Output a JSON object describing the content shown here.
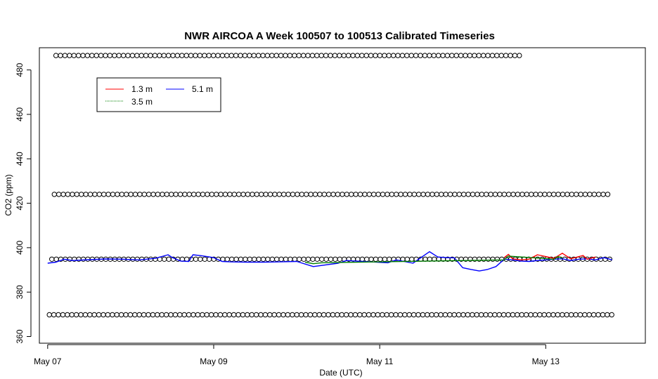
{
  "chart_data": {
    "type": "line",
    "title": "NWR AIRCOA A  Week 100507 to 100513  Calibrated Timeseries",
    "xlabel": "Date (UTC)",
    "ylabel": "CO2 (ppm)",
    "xlim": [
      -0.1,
      7.2
    ],
    "ylim": [
      357,
      490
    ],
    "x_ticks": [
      {
        "value": 0,
        "label": "May 07"
      },
      {
        "value": 2,
        "label": "May 09"
      },
      {
        "value": 4,
        "label": "May 11"
      },
      {
        "value": 6,
        "label": "May 13"
      }
    ],
    "y_ticks": [
      360,
      380,
      400,
      420,
      440,
      460,
      480
    ],
    "legend": {
      "position": "top-left",
      "entries": [
        {
          "name": "1.3 m",
          "color": "#ff0000"
        },
        {
          "name": "3.5 m",
          "color": "#008000"
        },
        {
          "name": "5.1 m",
          "color": "#0000ff"
        }
      ]
    },
    "reference_point_rows": [
      {
        "y": 486.5,
        "x_start": 0.1,
        "x_end": 5.7
      },
      {
        "y": 424.0,
        "x_start": 0.08,
        "x_end": 6.8
      },
      {
        "y": 394.8,
        "x_start": 0.05,
        "x_end": 6.8
      },
      {
        "y": 369.8,
        "x_start": 0.02,
        "x_end": 6.8
      }
    ],
    "series": [
      {
        "name": "5.1 m",
        "color": "#0000ff",
        "x": [
          0.0,
          0.1,
          0.2,
          0.3,
          0.5,
          0.7,
          0.9,
          1.1,
          1.3,
          1.45,
          1.5,
          1.6,
          1.7,
          1.75,
          1.85,
          2.0,
          2.1,
          2.2,
          2.4,
          2.6,
          2.8,
          3.0,
          3.2,
          3.5,
          3.6,
          3.7,
          3.8,
          3.9,
          4.0,
          4.1,
          4.2,
          4.4,
          4.6,
          4.7,
          4.8,
          4.9,
          5.0,
          5.1,
          5.2,
          5.3,
          5.4,
          5.5,
          5.6,
          5.7,
          5.8,
          5.9,
          6.0,
          6.1,
          6.2,
          6.3,
          6.4,
          6.5,
          6.6,
          6.7,
          6.8
        ],
        "y": [
          393.0,
          393.5,
          394.8,
          394.2,
          394.6,
          394.9,
          394.8,
          394.5,
          395.2,
          396.8,
          395.6,
          394.0,
          393.8,
          396.8,
          396.4,
          395.5,
          393.8,
          393.6,
          393.5,
          393.5,
          393.6,
          393.8,
          391.5,
          393.0,
          394.2,
          394.0,
          393.8,
          393.6,
          393.4,
          393.2,
          394.5,
          393.0,
          398.2,
          395.8,
          395.5,
          395.4,
          391.0,
          390.2,
          389.5,
          390.2,
          391.5,
          394.8,
          394.5,
          394.0,
          393.8,
          394.2,
          394.5,
          394.8,
          395.0,
          394.2,
          394.8,
          395.0,
          394.5,
          395.5,
          394.5
        ]
      },
      {
        "name": "1.3 m",
        "color": "#ff0000",
        "x": [
          5.5,
          5.55,
          5.6,
          5.7,
          5.8,
          5.9,
          6.1,
          6.2,
          6.3,
          6.45,
          6.5,
          6.6
        ],
        "y": [
          395.5,
          397.0,
          395.0,
          394.5,
          394.8,
          396.8,
          395.2,
          397.5,
          395.0,
          396.5,
          394.8,
          395.8
        ]
      },
      {
        "name": "3.5 m",
        "color": "#008000",
        "x": [
          3.1,
          3.2,
          3.3,
          5.5,
          5.55,
          6.1,
          6.15,
          6.2
        ],
        "y": [
          393.5,
          392.8,
          393.2,
          394.5,
          396.2,
          394.8,
          396.0,
          395.2
        ]
      }
    ]
  }
}
